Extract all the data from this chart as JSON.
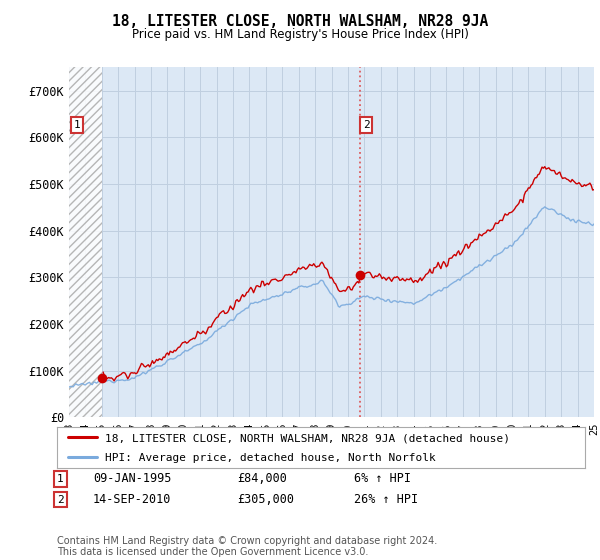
{
  "title": "18, LITESTER CLOSE, NORTH WALSHAM, NR28 9JA",
  "subtitle": "Price paid vs. HM Land Registry's House Price Index (HPI)",
  "legend_line1": "18, LITESTER CLOSE, NORTH WALSHAM, NR28 9JA (detached house)",
  "legend_line2": "HPI: Average price, detached house, North Norfolk",
  "transaction1_date": "09-JAN-1995",
  "transaction1_price": "£84,000",
  "transaction1_hpi": "6% ↑ HPI",
  "transaction1_year": 1995.04,
  "transaction1_value": 84000,
  "transaction2_date": "14-SEP-2010",
  "transaction2_price": "£305,000",
  "transaction2_hpi": "26% ↑ HPI",
  "transaction2_year": 2010.71,
  "transaction2_value": 305000,
  "dashed_line_year": 2010.71,
  "ylim_min": 0,
  "ylim_max": 750000,
  "yticks": [
    0,
    100000,
    200000,
    300000,
    400000,
    500000,
    600000,
    700000
  ],
  "ytick_labels": [
    "£0",
    "£100K",
    "£200K",
    "£300K",
    "£400K",
    "£500K",
    "£600K",
    "£700K"
  ],
  "xmin": 1993,
  "xmax": 2025,
  "hatch_region_end": 1995.04,
  "property_color": "#cc0000",
  "hpi_color": "#7aaadd",
  "background_color": "#dce8f5",
  "hatch_bg_color": "#d0d8e8",
  "grid_color": "#c0cfe0",
  "footnote": "Contains HM Land Registry data © Crown copyright and database right 2024.\nThis data is licensed under the Open Government Licence v3.0."
}
